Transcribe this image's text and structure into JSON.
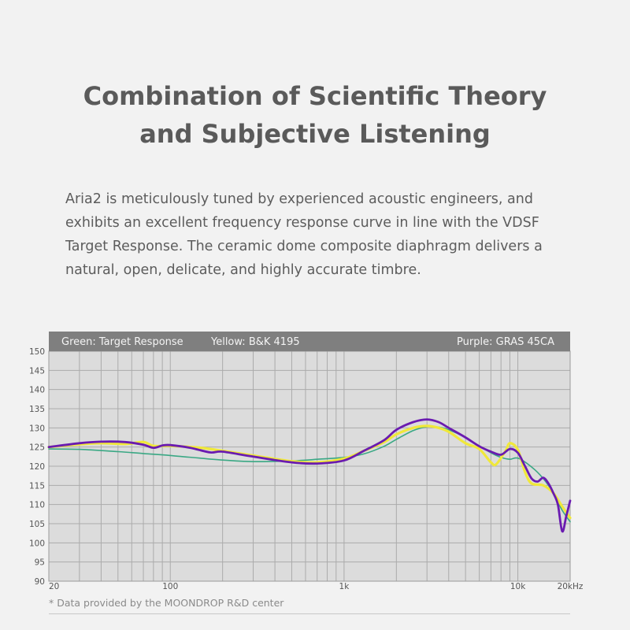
{
  "header": {
    "title_line1": "Combination of Scientific Theory",
    "title_line2": "and Subjective Listening"
  },
  "description": {
    "lines": [
      "Aria2 is meticulously tuned by experienced acoustic engineers, and",
      "exhibits an excellent frequency response curve in line with the VDSF",
      "Target Response. The ceramic dome composite diaphragm delivers a",
      "natural, open, delicate, and highly accurate timbre."
    ]
  },
  "footnote": "* Data provided by the MOONDROP R&D center",
  "chart_data": {
    "type": "line",
    "x_scale": "log",
    "xlim": [
      20,
      20000
    ],
    "ylim": [
      90,
      150
    ],
    "y_ticks": [
      90,
      95,
      100,
      105,
      110,
      115,
      120,
      125,
      130,
      135,
      140,
      145,
      150
    ],
    "x_tick_labels": [
      {
        "value": 20,
        "label": "20"
      },
      {
        "value": 100,
        "label": "100"
      },
      {
        "value": 1000,
        "label": "1k"
      },
      {
        "value": 10000,
        "label": "10k"
      },
      {
        "value": 20000,
        "label": "20kHz"
      }
    ],
    "grid": true,
    "legend": {
      "left": [
        "Green: Target Response",
        "Yellow: B&K 4195"
      ],
      "right": "Purple: GRAS 45CA"
    },
    "colors": {
      "background": "#dcdcdc",
      "header_bar": "#7f7f7f",
      "grid": "#ababab",
      "green": "#3aa884",
      "yellow": "#f0e83a",
      "purple": "#6a1bb0"
    },
    "series": [
      {
        "name": "Target Response",
        "color": "green",
        "x": [
          20,
          30,
          50,
          70,
          100,
          200,
          300,
          500,
          700,
          1000,
          1300,
          1700,
          2000,
          2500,
          3000,
          3500,
          4000,
          5000,
          6000,
          7000,
          8000,
          9000,
          10000,
          12000,
          14000,
          16000,
          18000,
          20000
        ],
        "y": [
          124.5,
          124.4,
          123.8,
          123.3,
          122.8,
          121.6,
          121.2,
          121.4,
          121.8,
          122.3,
          123.2,
          125.2,
          127.0,
          129.3,
          130.3,
          130.2,
          129.5,
          127.5,
          125.3,
          123.5,
          122.3,
          121.8,
          122.1,
          119.8,
          116.8,
          113.0,
          108.5,
          105.5
        ]
      },
      {
        "name": "B&K 4195",
        "color": "yellow",
        "x": [
          20,
          30,
          40,
          55,
          70,
          80,
          100,
          150,
          200,
          300,
          500,
          700,
          1000,
          1300,
          1700,
          2000,
          2500,
          3000,
          3500,
          4000,
          5000,
          6000,
          7000,
          7500,
          8500,
          9000,
          10000,
          11000,
          12000,
          14000,
          16000,
          18000,
          20000
        ],
        "y": [
          125.0,
          125.7,
          126.0,
          125.8,
          126.3,
          125.3,
          125.3,
          124.8,
          124.0,
          122.8,
          121.3,
          121.0,
          122.0,
          124.0,
          126.3,
          128.3,
          130.0,
          130.5,
          130.0,
          129.0,
          126.0,
          124.5,
          121.0,
          120.5,
          124.0,
          126.0,
          124.3,
          118.5,
          115.5,
          115.0,
          113.0,
          109.5,
          106.5
        ]
      },
      {
        "name": "GRAS 45CA",
        "color": "purple",
        "x": [
          20,
          30,
          40,
          55,
          70,
          80,
          90,
          100,
          130,
          170,
          200,
          300,
          500,
          700,
          1000,
          1300,
          1700,
          2000,
          2500,
          3000,
          3500,
          4000,
          5000,
          6000,
          7000,
          8000,
          9000,
          10000,
          11000,
          12000,
          13000,
          14000,
          15000,
          16000,
          17000,
          18000,
          19000,
          20000
        ],
        "y": [
          125.0,
          126.0,
          126.4,
          126.3,
          125.6,
          124.8,
          125.4,
          125.5,
          124.8,
          123.6,
          123.8,
          122.5,
          121.0,
          120.7,
          121.5,
          124.0,
          126.8,
          129.5,
          131.5,
          132.2,
          131.5,
          130.0,
          127.5,
          125.2,
          123.8,
          123.0,
          124.5,
          123.5,
          120.0,
          116.8,
          116.0,
          117.0,
          115.5,
          113.0,
          110.0,
          103.0,
          107.0,
          111.0
        ]
      }
    ]
  }
}
